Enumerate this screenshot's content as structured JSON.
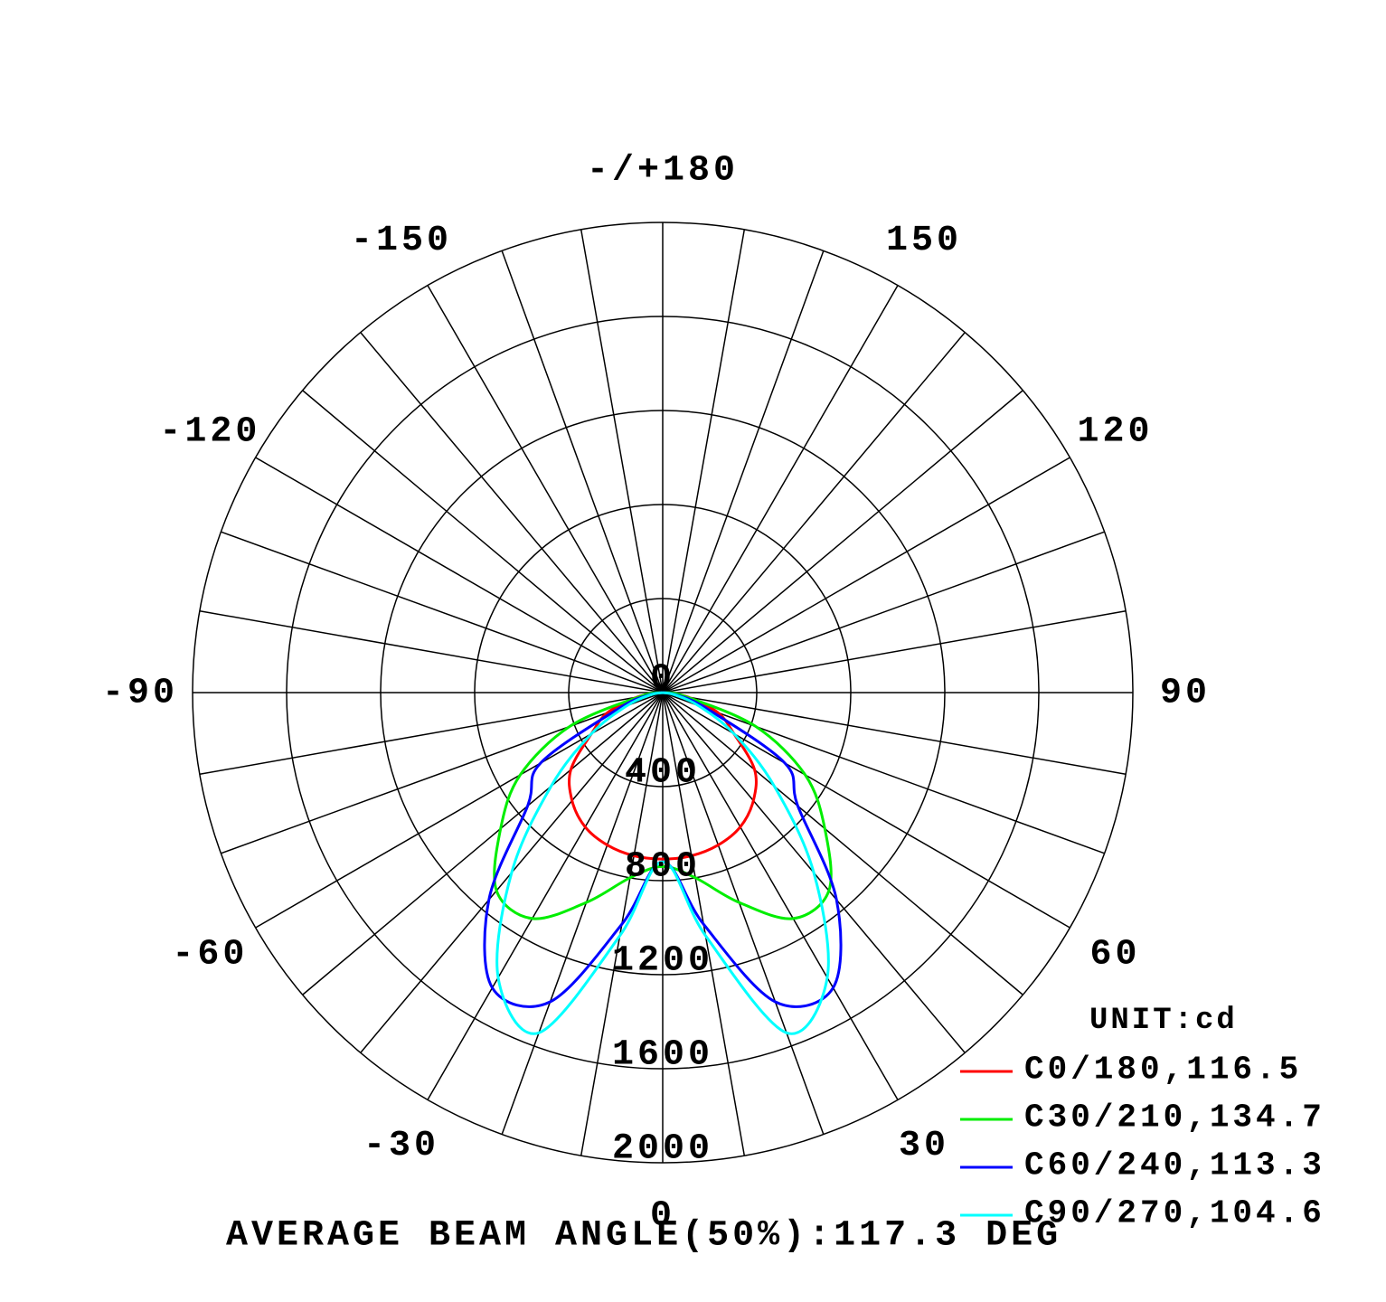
{
  "chart_data": {
    "type": "polar",
    "angle_zero": "bottom",
    "x": [
      -90,
      -80,
      -70,
      -60,
      -50,
      -40,
      -30,
      -20,
      -10,
      0,
      10,
      20,
      30,
      40,
      50,
      60,
      70,
      80,
      90
    ],
    "xticks": [
      0,
      30,
      60,
      90,
      120,
      150,
      {
        "value": 180,
        "label": "-/+180"
      },
      -150,
      -120,
      -90,
      -60,
      -30
    ],
    "ylim": [
      0,
      2000
    ],
    "yticks": [
      0,
      400,
      800,
      1200,
      1600,
      2000
    ],
    "legend_title": "UNIT:cd",
    "legend": "bottom-right",
    "series": [
      {
        "name": "C0/180,116.5",
        "color": "#ff0000",
        "values": [
          10,
          110,
          250,
          350,
          510,
          600,
          660,
          690,
          705,
          708,
          705,
          690,
          660,
          600,
          510,
          350,
          250,
          110,
          10
        ]
      },
      {
        "name": "C30/210,134.7",
        "color": "#00ee00",
        "values": [
          10,
          100,
          420,
          700,
          900,
          1100,
          1110,
          950,
          800,
          740,
          800,
          950,
          1110,
          1100,
          900,
          700,
          420,
          100,
          10
        ]
      },
      {
        "name": "C60/240,113.3",
        "color": "#0000ff",
        "values": [
          0,
          60,
          200,
          600,
          750,
          1150,
          1450,
          1400,
          1000,
          720,
          1000,
          1400,
          1450,
          1150,
          750,
          600,
          200,
          60,
          0
        ]
      },
      {
        "name": "C90/270,104.6",
        "color": "#00ffff",
        "values": [
          0,
          50,
          160,
          350,
          620,
          1000,
          1400,
          1540,
          1050,
          720,
          1050,
          1540,
          1400,
          1000,
          620,
          350,
          160,
          50,
          0
        ]
      }
    ],
    "footer": "AVERAGE BEAM ANGLE(50%):117.3 DEG"
  }
}
